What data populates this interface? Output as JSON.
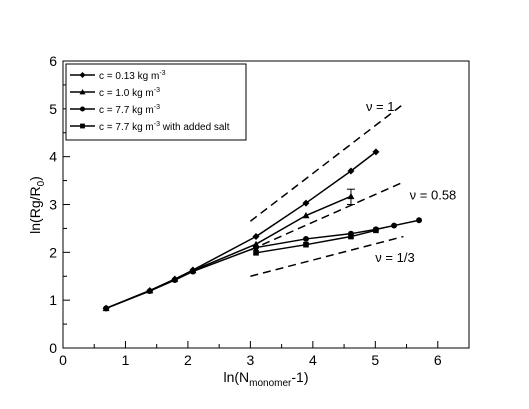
{
  "chart_data": {
    "type": "line",
    "xlim": [
      0,
      6.5
    ],
    "ylim": [
      0,
      6
    ],
    "x_ticks": [
      0,
      1,
      2,
      3,
      4,
      5,
      6
    ],
    "y_ticks": [
      0,
      1,
      2,
      3,
      4,
      5,
      6
    ],
    "xlabel": {
      "main": "ln(N",
      "sub": "monomer",
      "tail": "-1)"
    },
    "ylabel": {
      "main": "ln(Rg/R",
      "sub": "0",
      "tail": ")"
    },
    "grid": false,
    "legend_position": "top-left",
    "series": [
      {
        "name": "c = 0.13 kg m",
        "name_sup": "-3",
        "marker": "diamond",
        "points": [
          [
            0.69,
            0.83
          ],
          [
            1.39,
            1.2
          ],
          [
            1.79,
            1.44
          ],
          [
            2.08,
            1.63
          ],
          [
            3.09,
            2.33
          ],
          [
            3.89,
            3.03
          ],
          [
            4.61,
            3.7
          ],
          [
            5.01,
            4.1
          ]
        ]
      },
      {
        "name": "c = 1.0 kg m",
        "name_sup": "-3",
        "marker": "triangle",
        "points": [
          [
            0.69,
            0.83
          ],
          [
            1.39,
            1.2
          ],
          [
            1.79,
            1.44
          ],
          [
            2.08,
            1.62
          ],
          [
            3.09,
            2.17
          ],
          [
            3.89,
            2.77
          ],
          [
            4.61,
            3.17
          ]
        ],
        "error_bars": [
          {
            "x": 4.61,
            "low": 3.0,
            "high": 3.32
          }
        ]
      },
      {
        "name": "c = 7.7 kg m",
        "name_sup": "-3",
        "marker": "circle",
        "points": [
          [
            0.69,
            0.83
          ],
          [
            1.39,
            1.19
          ],
          [
            1.79,
            1.42
          ],
          [
            2.08,
            1.6
          ],
          [
            3.09,
            2.1
          ],
          [
            3.89,
            2.28
          ],
          [
            4.61,
            2.39
          ],
          [
            5.01,
            2.48
          ],
          [
            5.3,
            2.56
          ],
          [
            5.7,
            2.67
          ]
        ]
      },
      {
        "name": "c = 7.7 kg m",
        "name_sup": "-3",
        "name_suffix": " with added salt",
        "marker": "square",
        "points": [
          [
            3.09,
            1.99
          ],
          [
            3.89,
            2.16
          ],
          [
            4.61,
            2.33
          ],
          [
            5.01,
            2.46
          ]
        ]
      }
    ],
    "reference_lines": [
      {
        "label": "ν = 1",
        "from": [
          3.0,
          2.65
        ],
        "to": [
          5.45,
          5.1
        ],
        "label_at": [
          4.85,
          4.95
        ]
      },
      {
        "label": "ν = 0.58",
        "from": [
          3.0,
          2.05
        ],
        "to": [
          5.45,
          3.47
        ],
        "label_at": [
          5.55,
          3.1
        ]
      },
      {
        "label": "ν = 1/3",
        "from": [
          3.0,
          1.5
        ],
        "to": [
          5.45,
          2.33
        ],
        "label_at": [
          5.0,
          1.8
        ]
      }
    ]
  }
}
